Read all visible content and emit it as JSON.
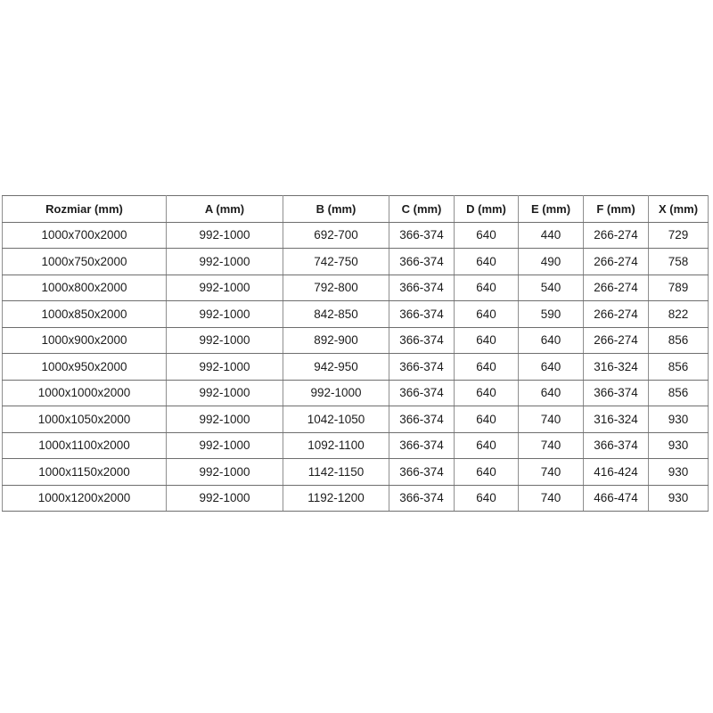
{
  "page": {
    "background_color": "#ffffff",
    "text_color": "#1c1c1c",
    "border_color_horizontal": "#6e6e6e",
    "border_color_vertical": "#8f8f8f"
  },
  "table": {
    "headers": [
      "Rozmiar (mm)",
      "A (mm)",
      "B (mm)",
      "C (mm)",
      "D (mm)",
      "E (mm)",
      "F (mm)",
      "X (mm)"
    ],
    "rows": [
      [
        "1000x700x2000",
        "992-1000",
        "692-700",
        "366-374",
        "640",
        "440",
        "266-274",
        "729"
      ],
      [
        "1000x750x2000",
        "992-1000",
        "742-750",
        "366-374",
        "640",
        "490",
        "266-274",
        "758"
      ],
      [
        "1000x800x2000",
        "992-1000",
        "792-800",
        "366-374",
        "640",
        "540",
        "266-274",
        "789"
      ],
      [
        "1000x850x2000",
        "992-1000",
        "842-850",
        "366-374",
        "640",
        "590",
        "266-274",
        "822"
      ],
      [
        "1000x900x2000",
        "992-1000",
        "892-900",
        "366-374",
        "640",
        "640",
        "266-274",
        "856"
      ],
      [
        "1000x950x2000",
        "992-1000",
        "942-950",
        "366-374",
        "640",
        "640",
        "316-324",
        "856"
      ],
      [
        "1000x1000x2000",
        "992-1000",
        "992-1000",
        "366-374",
        "640",
        "640",
        "366-374",
        "856"
      ],
      [
        "1000x1050x2000",
        "992-1000",
        "1042-1050",
        "366-374",
        "640",
        "740",
        "316-324",
        "930"
      ],
      [
        "1000x1100x2000",
        "992-1000",
        "1092-1100",
        "366-374",
        "640",
        "740",
        "366-374",
        "930"
      ],
      [
        "1000x1150x2000",
        "992-1000",
        "1142-1150",
        "366-374",
        "640",
        "740",
        "416-424",
        "930"
      ],
      [
        "1000x1200x2000",
        "992-1000",
        "1192-1200",
        "366-374",
        "640",
        "740",
        "466-474",
        "930"
      ]
    ]
  }
}
